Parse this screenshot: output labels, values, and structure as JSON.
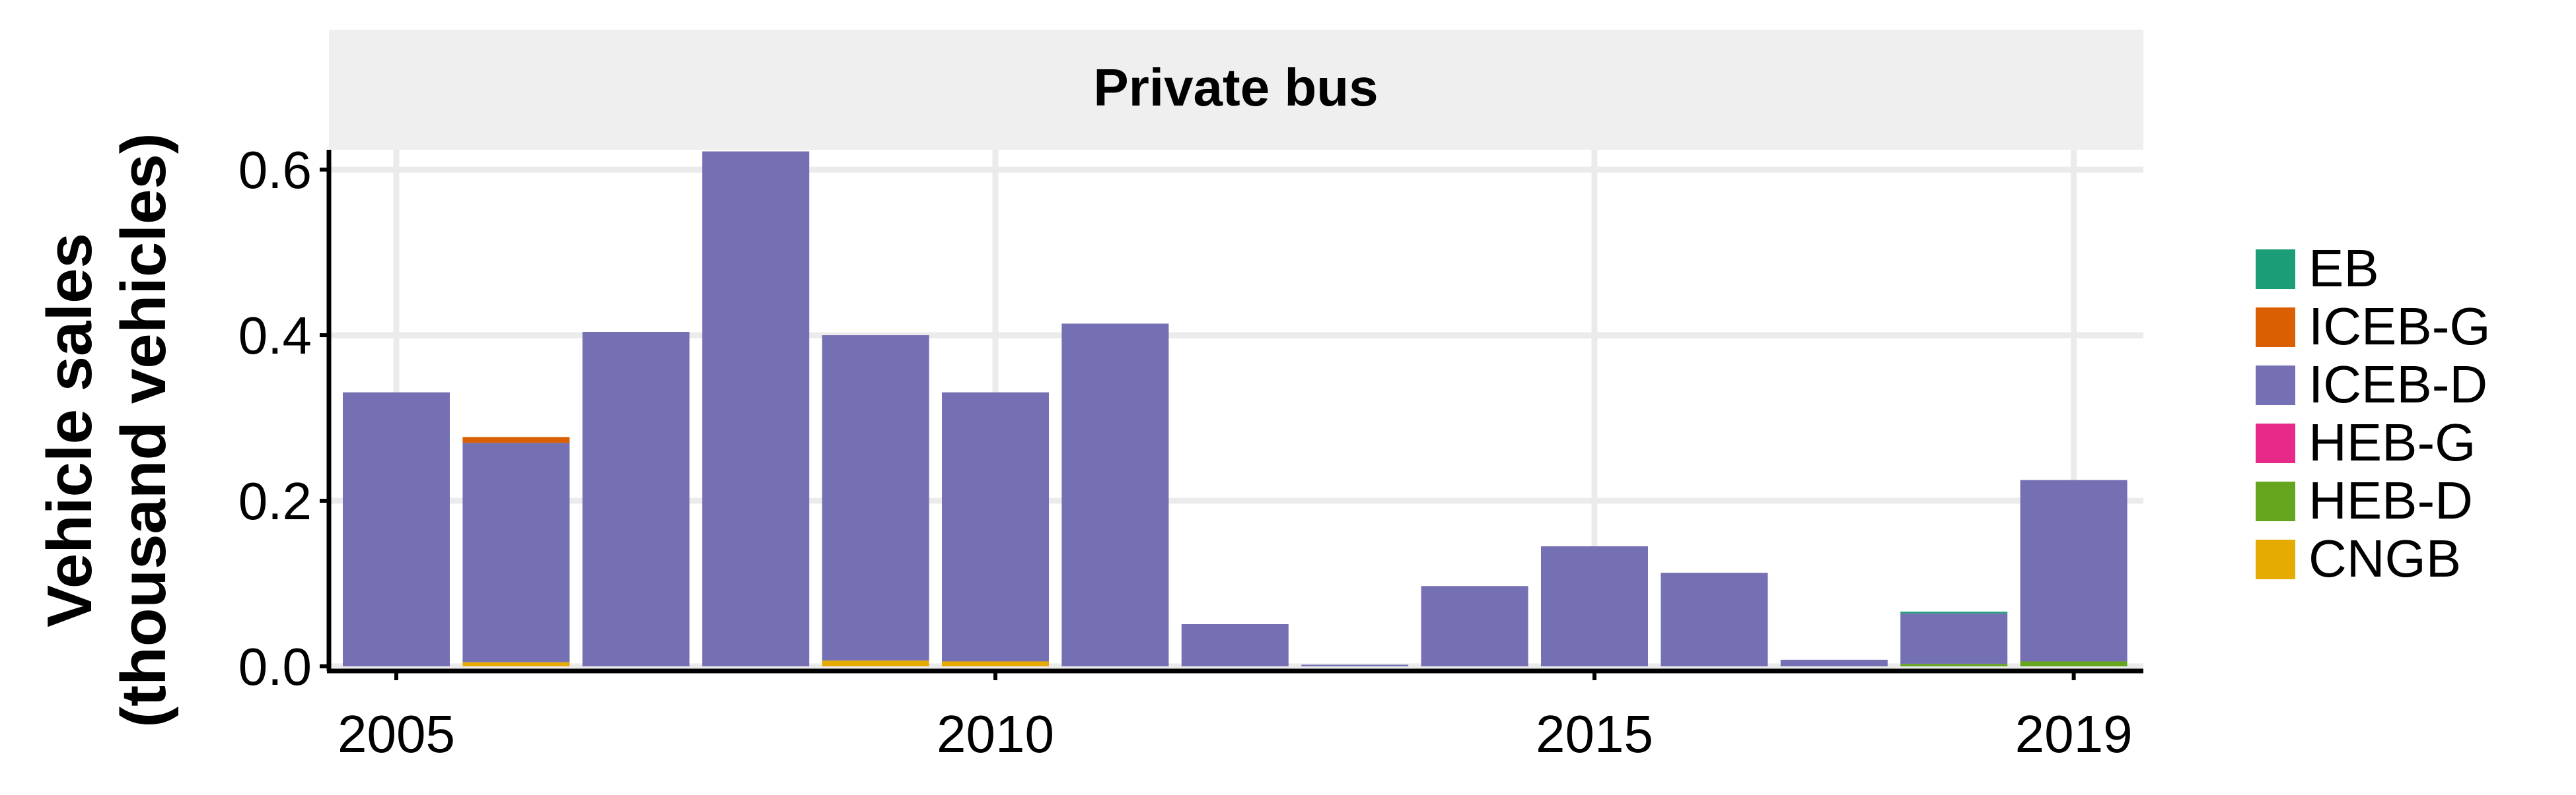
{
  "chart_data": {
    "type": "bar",
    "stacked": true,
    "panel_title": "Private bus",
    "ylabel_line1": "Vehicle sales",
    "ylabel_line2": "(thousand vehicles)",
    "xlabel": "",
    "x": [
      2005,
      2006,
      2007,
      2008,
      2009,
      2010,
      2011,
      2012,
      2013,
      2014,
      2015,
      2016,
      2017,
      2018,
      2019
    ],
    "x_ticks": [
      2005,
      2010,
      2015,
      2019
    ],
    "y_ticks": [
      "0.0",
      "0.2",
      "0.4",
      "0.6"
    ],
    "ylim": [
      0,
      0.62
    ],
    "grid": true,
    "legend_position": "right",
    "series": [
      {
        "name": "EB",
        "color": "#1B9E77",
        "values": [
          0,
          0,
          0,
          0,
          0,
          0,
          0,
          0,
          0,
          0,
          0,
          0,
          0,
          0.002,
          0
        ]
      },
      {
        "name": "ICEB-G",
        "color": "#D95F02",
        "values": [
          0,
          0.007,
          0,
          0,
          0,
          0,
          0,
          0,
          0,
          0,
          0,
          0,
          0,
          0,
          0
        ]
      },
      {
        "name": "ICEB-D",
        "color": "#7570B3",
        "values": [
          0.331,
          0.265,
          0.404,
          0.622,
          0.393,
          0.325,
          0.414,
          0.051,
          0.002,
          0.097,
          0.145,
          0.113,
          0.008,
          0.061,
          0.219
        ]
      },
      {
        "name": "HEB-G",
        "color": "#E7298A",
        "values": [
          0,
          0,
          0,
          0,
          0,
          0,
          0,
          0,
          0,
          0,
          0,
          0,
          0,
          0,
          0
        ]
      },
      {
        "name": "HEB-D",
        "color": "#66A61E",
        "values": [
          0,
          0,
          0,
          0,
          0,
          0,
          0,
          0,
          0,
          0,
          0,
          0,
          0,
          0.003,
          0.006
        ]
      },
      {
        "name": "CNGB",
        "color": "#E6AB02",
        "values": [
          0,
          0.005,
          0,
          0,
          0.007,
          0.006,
          0,
          0,
          0,
          0,
          0,
          0,
          0,
          0,
          0
        ]
      }
    ]
  }
}
